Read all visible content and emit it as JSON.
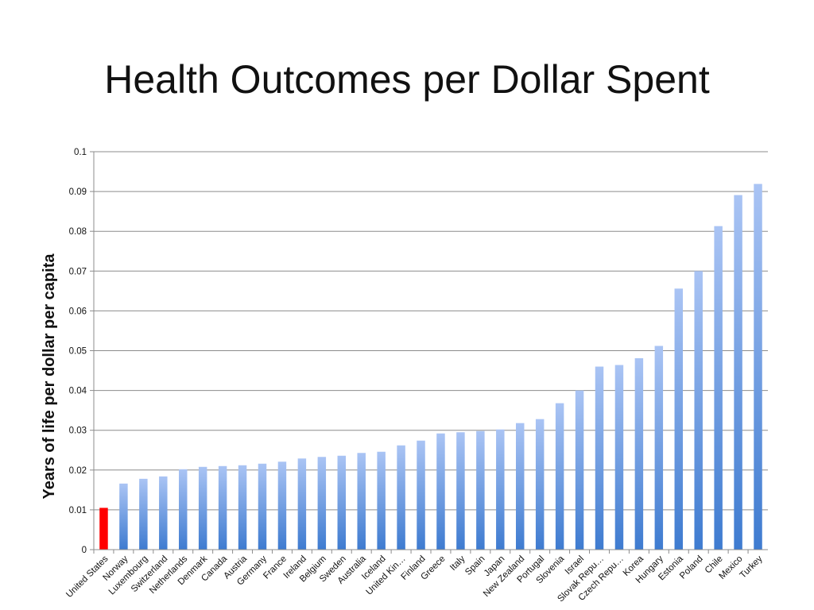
{
  "slide": {
    "title": "Health Outcomes per Dollar Spent"
  },
  "chart_data": {
    "type": "bar",
    "title": "Health Outcomes per Dollar Spent",
    "xlabel": "",
    "ylabel": "Years of life per dollar per capita",
    "ylim": [
      0,
      0.1
    ],
    "yticks": [
      "0",
      "0.01",
      "0.02",
      "0.03",
      "0.04",
      "0.05",
      "0.06",
      "0.07",
      "0.08",
      "0.09",
      "0.1"
    ],
    "grid": true,
    "legend": "none",
    "colors": {
      "highlight": "#ff0000",
      "bar_top": "#aac4f4",
      "bar_bottom": "#3e7bd0",
      "grid": "#8c8c8c",
      "axis": "#8c8c8c"
    },
    "categories": [
      "United States",
      "Norway",
      "Luxembourg",
      "Switzerland",
      "Netherlands",
      "Denmark",
      "Canada",
      "Austria",
      "Germany",
      "France",
      "Ireland",
      "Belgium",
      "Sweden",
      "Australia",
      "Iceland",
      "United Kin…",
      "Finland",
      "Greece",
      "Italy",
      "Spain",
      "Japan",
      "New Zealand",
      "Portugal",
      "Slovenia",
      "Israel",
      "Slovak Repu…",
      "Czech Repu…",
      "Korea",
      "Hungary",
      "Estonia",
      "Poland",
      "Chile",
      "Mexico",
      "Turkey"
    ],
    "values": [
      0.0105,
      0.0166,
      0.0178,
      0.0184,
      0.0202,
      0.0208,
      0.021,
      0.0212,
      0.0216,
      0.0221,
      0.0229,
      0.0233,
      0.0236,
      0.0243,
      0.0246,
      0.0262,
      0.0274,
      0.0292,
      0.0295,
      0.0298,
      0.0302,
      0.0318,
      0.0328,
      0.0368,
      0.04,
      0.046,
      0.0464,
      0.0481,
      0.0512,
      0.0656,
      0.07,
      0.0813,
      0.0891,
      0.0919
    ],
    "highlight_category": "United States"
  }
}
